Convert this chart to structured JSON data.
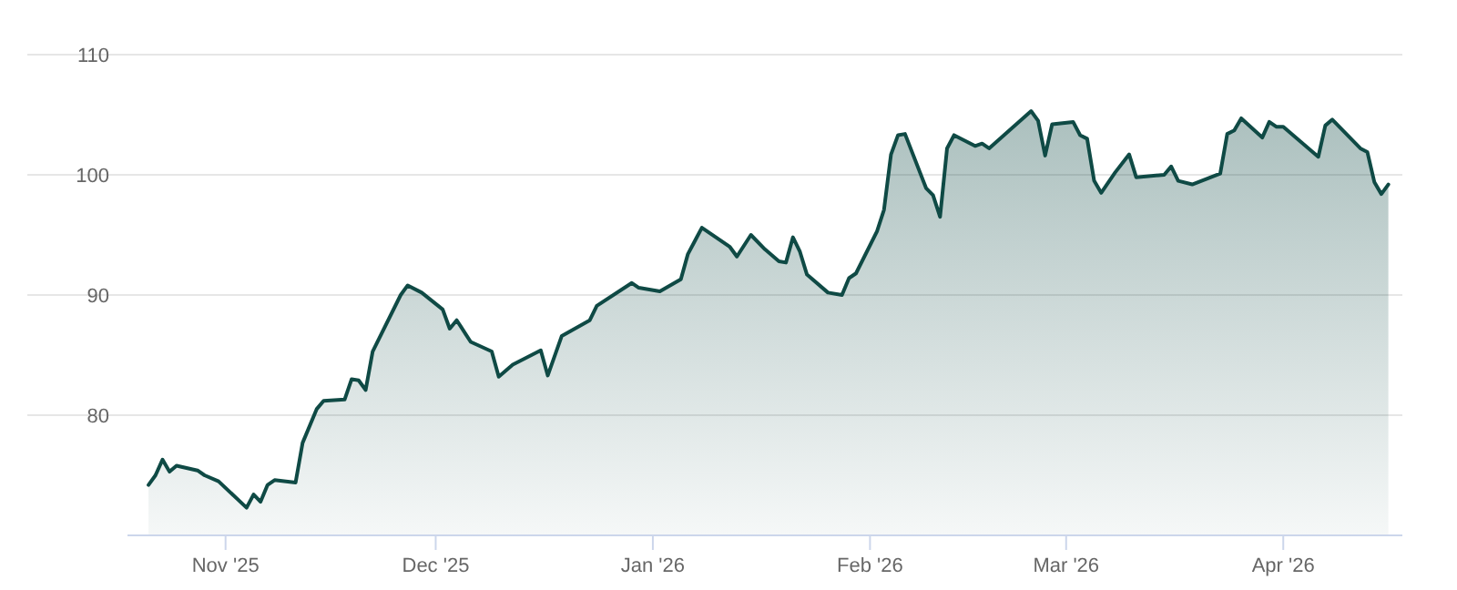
{
  "chart_data": {
    "type": "area",
    "x": [
      "2025-10-21",
      "2025-10-22",
      "2025-10-23",
      "2025-10-24",
      "2025-10-25",
      "2025-10-28",
      "2025-10-29",
      "2025-10-31",
      "2025-11-04",
      "2025-11-05",
      "2025-11-06",
      "2025-11-07",
      "2025-11-08",
      "2025-11-11",
      "2025-11-12",
      "2025-11-14",
      "2025-11-15",
      "2025-11-18",
      "2025-11-19",
      "2025-11-20",
      "2025-11-21",
      "2025-11-22",
      "2025-11-26",
      "2025-11-27",
      "2025-11-29",
      "2025-12-02",
      "2025-12-03",
      "2025-12-04",
      "2025-12-06",
      "2025-12-09",
      "2025-12-10",
      "2025-12-12",
      "2025-12-16",
      "2025-12-17",
      "2025-12-19",
      "2025-12-23",
      "2025-12-24",
      "2025-12-29",
      "2025-12-30",
      "2026-01-02",
      "2026-01-05",
      "2026-01-06",
      "2026-01-08",
      "2026-01-12",
      "2026-01-13",
      "2026-01-15",
      "2026-01-17",
      "2026-01-19",
      "2026-01-20",
      "2026-01-21",
      "2026-01-22",
      "2026-01-23",
      "2026-01-26",
      "2026-01-28",
      "2026-01-29",
      "2026-01-30",
      "2026-02-02",
      "2026-02-03",
      "2026-02-04",
      "2026-02-05",
      "2026-02-06",
      "2026-02-09",
      "2026-02-10",
      "2026-02-11",
      "2026-02-12",
      "2026-02-13",
      "2026-02-16",
      "2026-02-17",
      "2026-02-18",
      "2026-02-24",
      "2026-02-25",
      "2026-02-26",
      "2026-02-27",
      "2026-03-02",
      "2026-03-03",
      "2026-03-04",
      "2026-03-05",
      "2026-03-06",
      "2026-03-08",
      "2026-03-10",
      "2026-03-11",
      "2026-03-15",
      "2026-03-16",
      "2026-03-17",
      "2026-03-19",
      "2026-03-23",
      "2026-03-24",
      "2026-03-25",
      "2026-03-26",
      "2026-03-29",
      "2026-03-30",
      "2026-03-31",
      "2026-04-01",
      "2026-04-06",
      "2026-04-07",
      "2026-04-08",
      "2026-04-12",
      "2026-04-13",
      "2026-04-14",
      "2026-04-15",
      "2026-04-16"
    ],
    "series": [
      {
        "color": "#0f4a45",
        "values": [
          74.2,
          75.0,
          76.3,
          75.3,
          75.8,
          75.4,
          75.0,
          74.5,
          72.3,
          73.4,
          72.8,
          74.2,
          74.6,
          74.4,
          77.7,
          80.5,
          81.2,
          81.3,
          83.0,
          82.9,
          82.1,
          85.3,
          90.0,
          90.8,
          90.2,
          88.8,
          87.2,
          87.9,
          86.1,
          85.3,
          83.2,
          84.2,
          85.4,
          83.3,
          86.6,
          87.9,
          89.1,
          91.0,
          90.6,
          90.3,
          91.3,
          93.4,
          95.6,
          94.0,
          93.2,
          95.0,
          93.8,
          92.8,
          92.7,
          94.8,
          93.6,
          91.7,
          90.2,
          90.0,
          91.4,
          91.8,
          95.3,
          97.1,
          101.7,
          103.3,
          103.4,
          98.9,
          98.3,
          96.5,
          102.2,
          103.3,
          102.4,
          102.6,
          102.2,
          105.3,
          104.5,
          101.6,
          104.2,
          104.4,
          103.3,
          103.0,
          99.5,
          98.5,
          100.2,
          101.7,
          99.8,
          100.0,
          100.7,
          99.5,
          99.2,
          100.1,
          103.4,
          103.7,
          104.7,
          103.1,
          104.4,
          104.0,
          104.0,
          101.5,
          104.1,
          104.6,
          102.2,
          101.9,
          99.4,
          98.4,
          99.2
        ]
      }
    ],
    "xlim": [
      "2025-10-18",
      "2026-04-18"
    ],
    "xticks": [
      {
        "value": "2025-11-01",
        "label": "Nov '25"
      },
      {
        "value": "2025-12-01",
        "label": "Dec '25"
      },
      {
        "value": "2026-01-01",
        "label": "Jan '26"
      },
      {
        "value": "2026-02-01",
        "label": "Feb '26"
      },
      {
        "value": "2026-03-01",
        "label": "Mar '26"
      },
      {
        "value": "2026-04-01",
        "label": "Apr '26"
      }
    ],
    "ylim": [
      70,
      110
    ],
    "yticks": [
      80,
      90,
      100,
      110
    ],
    "grid": "y"
  }
}
